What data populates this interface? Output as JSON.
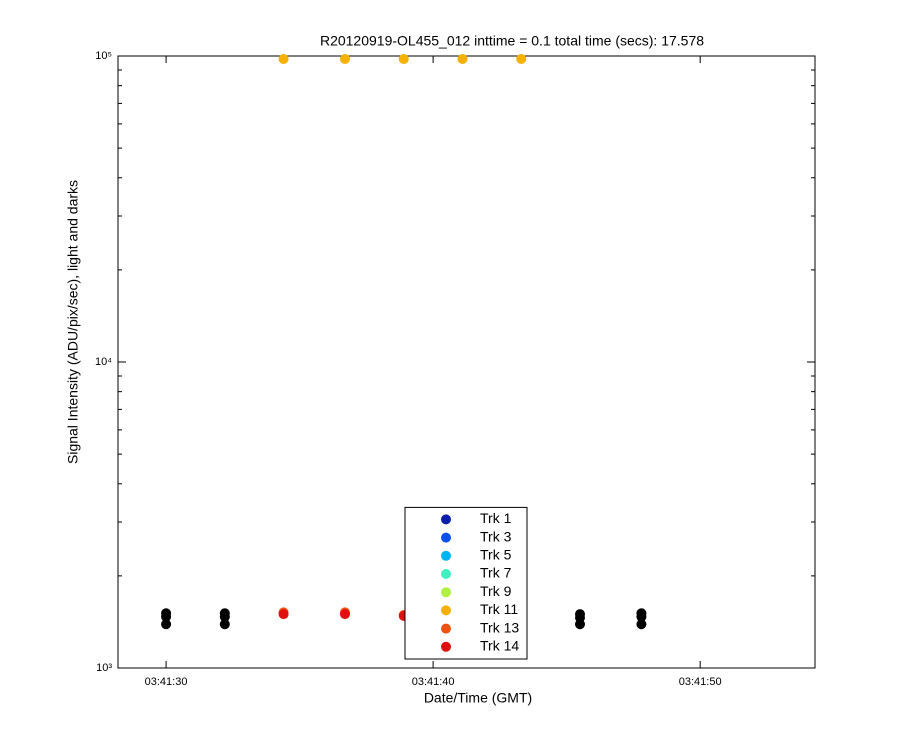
{
  "chart_data": {
    "type": "scatter",
    "title": "R20120919-OL455_012 inttime = 0.1 total time (secs): 17.578",
    "x_label": "Date/Time (GMT)",
    "y_label": "Signal Intensity (ADU/pix/sec), light and darks",
    "y_scale": "log",
    "xlim": [
      "03:41:28.2",
      "03:41:54.3"
    ],
    "xticks": [
      "03:41:30",
      "03:41:40",
      "03:41:50"
    ],
    "ylim": [
      1000,
      100000
    ],
    "yticks": [
      {
        "value": 1000,
        "label": "10³"
      },
      {
        "value": 10000,
        "label": "10⁴"
      },
      {
        "value": 100000,
        "label": "10⁵"
      }
    ],
    "legend": "bottom-center",
    "series": [
      {
        "color": "#000000",
        "x": [
          "03:41:30.0",
          "03:41:30.0",
          "03:41:30.0",
          "03:41:32.2",
          "03:41:32.2",
          "03:41:32.2",
          "03:41:45.5",
          "03:41:45.5",
          "03:41:45.5",
          "03:41:47.8",
          "03:41:47.8",
          "03:41:47.8"
        ],
        "values": [
          1510,
          1470,
          1390,
          1510,
          1470,
          1390,
          1500,
          1460,
          1390,
          1510,
          1470,
          1390
        ]
      },
      {
        "name": "Trk 1",
        "color": "#0a1eaa",
        "x": [],
        "values": []
      },
      {
        "name": "Trk 3",
        "color": "#0a4ff0",
        "x": [],
        "values": []
      },
      {
        "name": "Trk 5",
        "color": "#00b4f0",
        "x": [],
        "values": []
      },
      {
        "name": "Trk 7",
        "color": "#40f0c0",
        "x": [],
        "values": []
      },
      {
        "name": "Trk 9",
        "color": "#b0f040",
        "x": [],
        "values": []
      },
      {
        "name": "Trk 11",
        "color": "#f5b000",
        "x": [
          "03:41:34.4",
          "03:41:36.7",
          "03:41:38.9",
          "03:41:41.1",
          "03:41:43.3"
        ],
        "values": [
          97800,
          97800,
          97800,
          97800,
          97800
        ]
      },
      {
        "name": "Trk 13",
        "color": "#f05010",
        "x": [
          "03:41:34.4",
          "03:41:36.7",
          "03:41:38.9"
        ],
        "values": [
          1520,
          1520,
          1490
        ]
      },
      {
        "name": "Trk 14",
        "color": "#e01010",
        "x": [
          "03:41:34.4",
          "03:41:36.7",
          "03:41:38.9"
        ],
        "values": [
          1500,
          1500,
          1480
        ]
      }
    ]
  }
}
